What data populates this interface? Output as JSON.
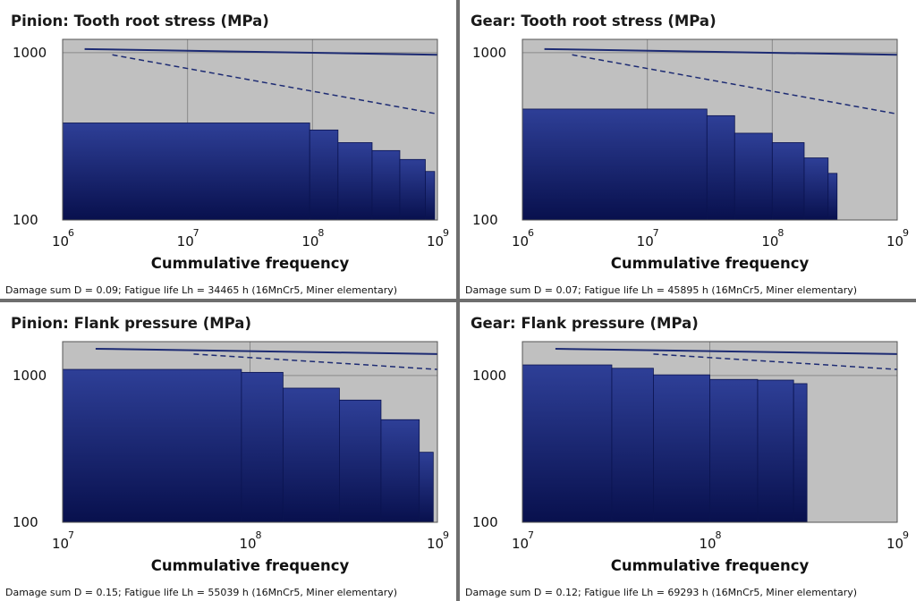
{
  "colors": {
    "plot_bg": "#c0c0c0",
    "grid": "#8a8a8a",
    "bar_top": "#2e3f97",
    "bar_bottom": "#08104d",
    "line": "#1d2b73",
    "panel_bg": "#ffffff",
    "divider": "#6e6e6e"
  },
  "chart_data": [
    {
      "type": "bar",
      "title": "Pinion: Tooth root stress  (MPa)",
      "xlabel": "Cummulative frequency",
      "x_scale": "log",
      "y_scale": "log",
      "xlim": [
        1000000,
        1000000000
      ],
      "ylim": [
        100,
        1200
      ],
      "x_ticks": [
        {
          "base": "10",
          "exp": "6",
          "value": 1000000
        },
        {
          "base": "10",
          "exp": "7",
          "value": 10000000
        },
        {
          "base": "10",
          "exp": "8",
          "value": 100000000
        },
        {
          "base": "10",
          "exp": "9",
          "value": 1000000000
        }
      ],
      "y_ticks": [
        {
          "label": "100",
          "value": 100
        },
        {
          "label": "1000",
          "value": 1000
        }
      ],
      "grid": true,
      "steps": [
        {
          "x_end": 95000000,
          "value": 380
        },
        {
          "x_end": 160000000,
          "value": 345
        },
        {
          "x_end": 300000000,
          "value": 290
        },
        {
          "x_end": 500000000,
          "value": 260
        },
        {
          "x_end": 800000000,
          "value": 230
        },
        {
          "x_end": 950000000,
          "value": 195
        }
      ],
      "limit_solid": {
        "x": [
          1500000,
          1000000000
        ],
        "y": [
          1050,
          970
        ]
      },
      "limit_dashed": {
        "x": [
          2500000,
          1000000000
        ],
        "y": [
          970,
          430
        ]
      },
      "footer": "Damage sum  D = 0.09;  Fatigue life  Lh = 34465 h  (16MnCr5, Miner elementary)"
    },
    {
      "type": "bar",
      "title": "Gear: Tooth root stress  (MPa)",
      "xlabel": "Cummulative frequency",
      "x_scale": "log",
      "y_scale": "log",
      "xlim": [
        1000000,
        1000000000
      ],
      "ylim": [
        100,
        1200
      ],
      "x_ticks": [
        {
          "base": "10",
          "exp": "6",
          "value": 1000000
        },
        {
          "base": "10",
          "exp": "7",
          "value": 10000000
        },
        {
          "base": "10",
          "exp": "8",
          "value": 100000000
        },
        {
          "base": "10",
          "exp": "9",
          "value": 1000000000
        }
      ],
      "y_ticks": [
        {
          "label": "100",
          "value": 100
        },
        {
          "label": "1000",
          "value": 1000
        }
      ],
      "grid": true,
      "steps": [
        {
          "x_end": 30000000,
          "value": 460
        },
        {
          "x_end": 50000000,
          "value": 420
        },
        {
          "x_end": 100000000,
          "value": 330
        },
        {
          "x_end": 180000000,
          "value": 290
        },
        {
          "x_end": 280000000,
          "value": 235
        },
        {
          "x_end": 330000000,
          "value": 190
        }
      ],
      "limit_solid": {
        "x": [
          1500000,
          1000000000
        ],
        "y": [
          1050,
          970
        ]
      },
      "limit_dashed": {
        "x": [
          2500000,
          1000000000
        ],
        "y": [
          970,
          430
        ]
      },
      "footer": "Damage sum  D = 0.07;  Fatigue life  Lh = 45895 h  (16MnCr5, Miner elementary)"
    },
    {
      "type": "bar",
      "title": "Pinion: Flank pressure  (MPa)",
      "xlabel": "Cummulative frequency",
      "x_scale": "log",
      "y_scale": "log",
      "xlim": [
        10000000,
        1000000000
      ],
      "ylim": [
        100,
        1700
      ],
      "x_ticks": [
        {
          "base": "10",
          "exp": "7",
          "value": 10000000
        },
        {
          "base": "10",
          "exp": "8",
          "value": 100000000
        },
        {
          "base": "10",
          "exp": "9",
          "value": 1000000000
        }
      ],
      "y_ticks": [
        {
          "label": "100",
          "value": 100
        },
        {
          "label": "1000",
          "value": 1000
        }
      ],
      "grid": true,
      "steps": [
        {
          "x_end": 90000000,
          "value": 1100
        },
        {
          "x_end": 150000000,
          "value": 1050
        },
        {
          "x_end": 300000000,
          "value": 820
        },
        {
          "x_end": 500000000,
          "value": 680
        },
        {
          "x_end": 800000000,
          "value": 500
        },
        {
          "x_end": 950000000,
          "value": 300
        }
      ],
      "limit_solid": {
        "x": [
          15000000,
          1000000000
        ],
        "y": [
          1520,
          1400
        ]
      },
      "limit_dashed": {
        "x": [
          50000000,
          1000000000
        ],
        "y": [
          1400,
          1100
        ]
      },
      "footer": "Damage sum  D = 0.15;  Fatigue life  Lh = 55039 h  (16MnCr5, Miner elementary)"
    },
    {
      "type": "bar",
      "title": "Gear: Flank pressure  (MPa)",
      "xlabel": "Cummulative frequency",
      "x_scale": "log",
      "y_scale": "log",
      "xlim": [
        10000000,
        1000000000
      ],
      "ylim": [
        100,
        1700
      ],
      "x_ticks": [
        {
          "base": "10",
          "exp": "7",
          "value": 10000000
        },
        {
          "base": "10",
          "exp": "8",
          "value": 100000000
        },
        {
          "base": "10",
          "exp": "9",
          "value": 1000000000
        }
      ],
      "y_ticks": [
        {
          "label": "100",
          "value": 100
        },
        {
          "label": "1000",
          "value": 1000
        }
      ],
      "grid": true,
      "steps": [
        {
          "x_end": 30000000,
          "value": 1180
        },
        {
          "x_end": 50000000,
          "value": 1120
        },
        {
          "x_end": 100000000,
          "value": 1010
        },
        {
          "x_end": 180000000,
          "value": 940
        },
        {
          "x_end": 280000000,
          "value": 930
        },
        {
          "x_end": 330000000,
          "value": 880
        }
      ],
      "limit_solid": {
        "x": [
          15000000,
          1000000000
        ],
        "y": [
          1520,
          1400
        ]
      },
      "limit_dashed": {
        "x": [
          50000000,
          1000000000
        ],
        "y": [
          1400,
          1100
        ]
      },
      "footer": "Damage sum  D = 0.12;  Fatigue life  Lh = 69293 h  (16MnCr5, Miner elementary)"
    }
  ]
}
